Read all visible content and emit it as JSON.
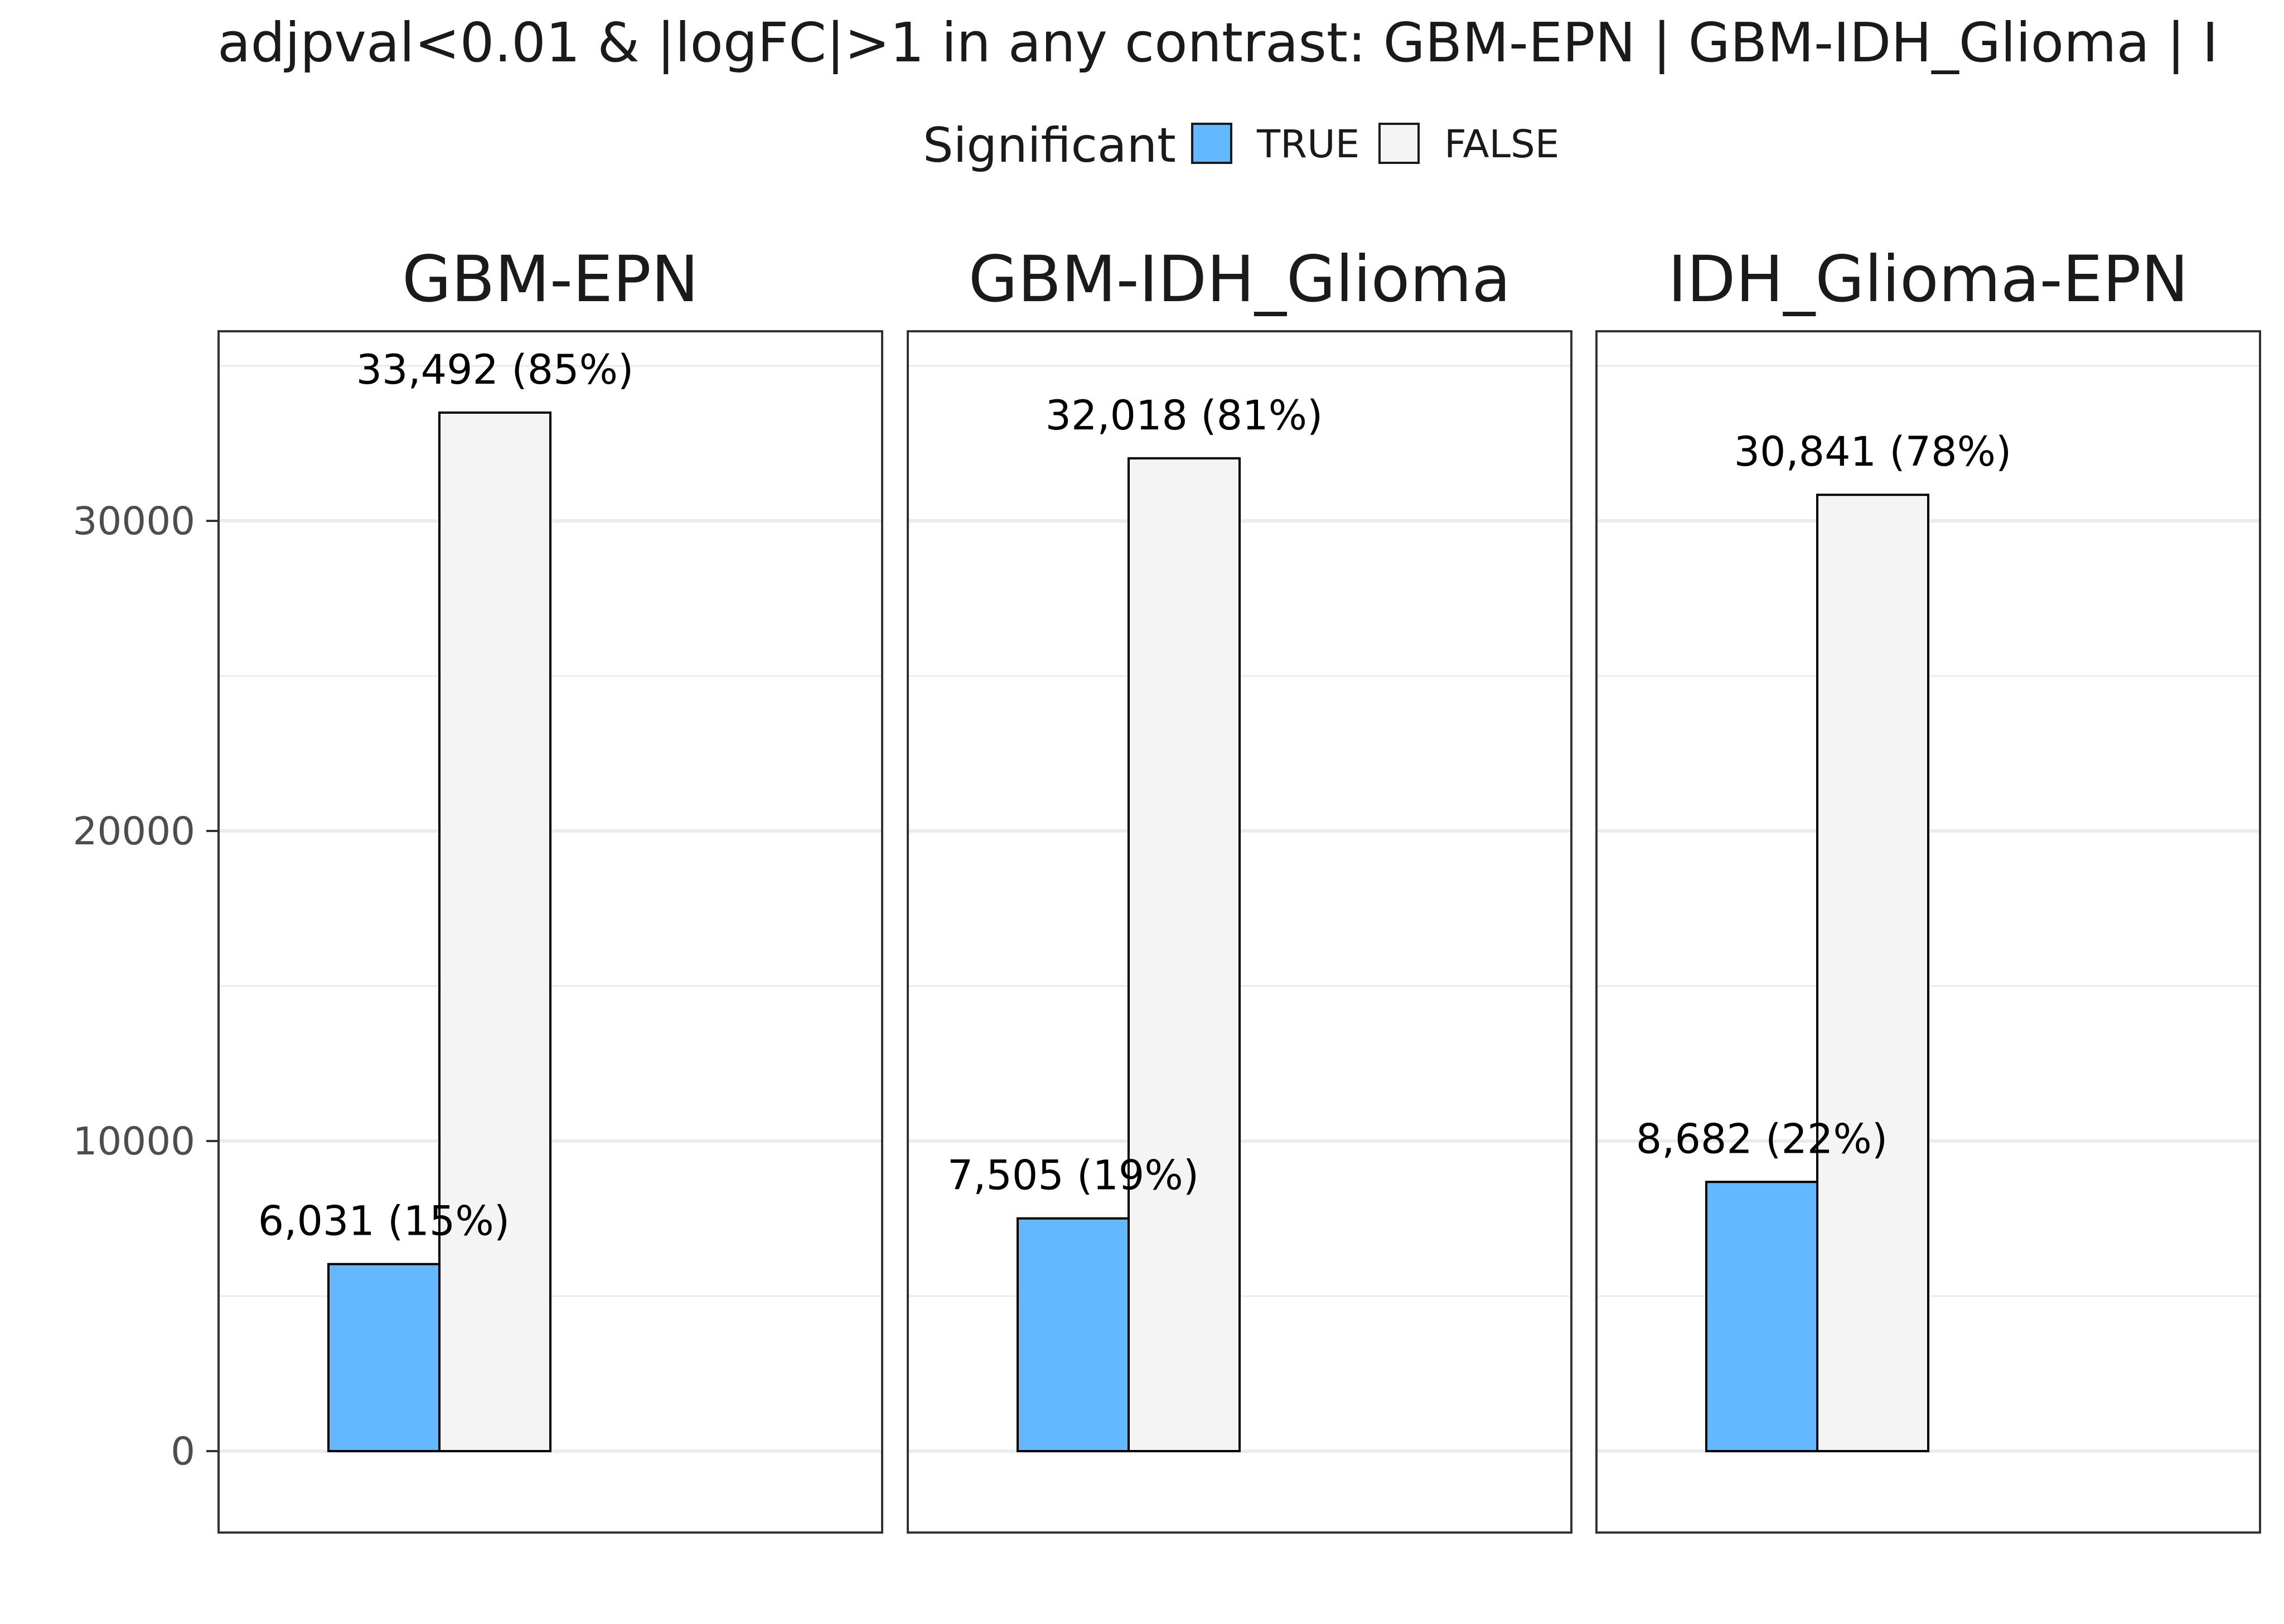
{
  "chart_data": {
    "type": "bar",
    "title": "adjpval<0.01 & |logFC|>1 in any contrast: GBM-EPN | GBM-IDH_Glioma | I",
    "legend": {
      "title": "Significant",
      "position": "top",
      "entries": [
        {
          "label": "TRUE",
          "color": "#63b8ff"
        },
        {
          "label": "FALSE",
          "color": "#f4f4f4"
        }
      ]
    },
    "xlabel": "",
    "ylabel": "",
    "ylim": [
      -2600,
      36000
    ],
    "yticks": [
      0,
      10000,
      20000,
      30000
    ],
    "ytick_labels": [
      "0",
      "10000",
      "20000",
      "30000"
    ],
    "grid": true,
    "facets": [
      {
        "name": "GBM-EPN",
        "bars": [
          {
            "series": "TRUE",
            "value": 6031,
            "label": "6,031 (15%)"
          },
          {
            "series": "FALSE",
            "value": 33492,
            "label": "33,492 (85%)"
          }
        ]
      },
      {
        "name": "GBM-IDH_Glioma",
        "bars": [
          {
            "series": "TRUE",
            "value": 7505,
            "label": "7,505 (19%)"
          },
          {
            "series": "FALSE",
            "value": 32018,
            "label": "32,018 (81%)"
          }
        ]
      },
      {
        "name": "IDH_Glioma-EPN",
        "bars": [
          {
            "series": "TRUE",
            "value": 8682,
            "label": "8,682 (22%)"
          },
          {
            "series": "FALSE",
            "value": 30841,
            "label": "30,841 (78%)"
          }
        ]
      }
    ]
  }
}
